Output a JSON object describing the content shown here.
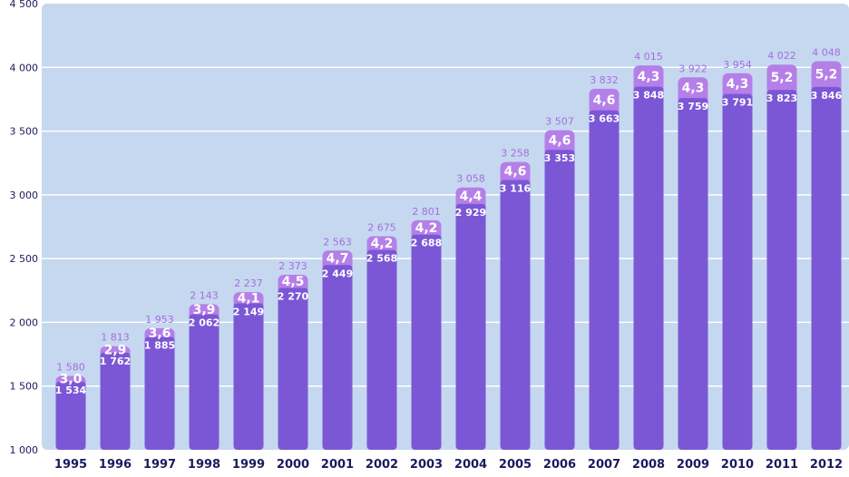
{
  "chart_data": {
    "type": "bar",
    "categories": [
      "1995",
      "1996",
      "1997",
      "1998",
      "1999",
      "2000",
      "2001",
      "2002",
      "2003",
      "2004",
      "2005",
      "2006",
      "2007",
      "2008",
      "2009",
      "2010",
      "2011",
      "2012"
    ],
    "series": [
      {
        "values": [
          1534,
          1762,
          1885,
          2062,
          2149,
          2270,
          2449,
          2568,
          2688,
          2929,
          3116,
          3353,
          3663,
          3848,
          3759,
          3791,
          3823,
          3846
        ],
        "labels": [
          "1 534",
          "1 762",
          "1 885",
          "2 062",
          "2 149",
          "2 270",
          "2 449",
          "2 568",
          "2 688",
          "2 929",
          "3 116",
          "3 353",
          "3 663",
          "3 848",
          "3 759",
          "3 791",
          "3 823",
          "3 846"
        ],
        "color": "#7b57d6"
      },
      {
        "values": [
          1580,
          1813,
          1953,
          2143,
          2237,
          2373,
          2563,
          2675,
          2801,
          3058,
          3258,
          3507,
          3832,
          4015,
          3922,
          3954,
          4022,
          4048
        ],
        "labels": [
          "1 580",
          "1 813",
          "1 953",
          "2 143",
          "2 237",
          "2 373",
          "2 563",
          "2 675",
          "2 801",
          "3 058",
          "3 258",
          "3 507",
          "3 832",
          "4 015",
          "3 922",
          "3 954",
          "4 022",
          "4 048"
        ],
        "color": "#b57fe8"
      }
    ],
    "segment_labels": [
      "3,0",
      "2,9",
      "3,6",
      "3,9",
      "4,1",
      "4,5",
      "4,7",
      "4,2",
      "4,2",
      "4,4",
      "4,6",
      "4,6",
      "4,6",
      "4,3",
      "4,3",
      "4,3",
      "5,2",
      "5,2"
    ],
    "y_ticks": [
      {
        "value": 1000,
        "label": "1 000"
      },
      {
        "value": 1500,
        "label": "1 500"
      },
      {
        "value": 2000,
        "label": "2 000"
      },
      {
        "value": 2500,
        "label": "2 500"
      },
      {
        "value": 3000,
        "label": "3 000"
      },
      {
        "value": 3500,
        "label": "3 500"
      },
      {
        "value": 4000,
        "label": "4 000"
      },
      {
        "value": 4500,
        "label": "4 500"
      }
    ],
    "ylim": [
      1000,
      4500
    ],
    "grid": true,
    "colors": {
      "plot_background": "#c5d8f0",
      "gridline": "#ffffff",
      "base_bar": "#7b57d6",
      "top_bar": "#b57fe8",
      "top_label": "#a86de0",
      "axis_text": "#1a1a5e"
    }
  }
}
